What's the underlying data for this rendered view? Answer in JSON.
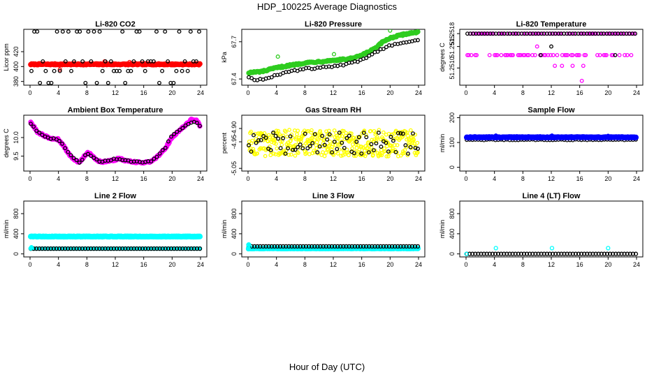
{
  "figure": {
    "title": "HDP_100225  Average Diagnostics",
    "xlabel": "Hour of Day (UTC)",
    "colors": {
      "frame": "#000000",
      "red": "#ff0000",
      "green": "#2ecc1f",
      "magenta": "#ff00ff",
      "yellow": "#ffff00",
      "blue": "#0000ff",
      "cyan": "#00ffff",
      "black": "#000000"
    }
  },
  "chart_data": [
    {
      "id": "co2",
      "type": "scatter",
      "title": "Li-820 CO2",
      "ylabel": "Licor ppm",
      "xlim": [
        0,
        24
      ],
      "ylim": [
        375,
        450
      ],
      "xticks": [
        "0",
        "4",
        "8",
        "12",
        "16",
        "20",
        "24"
      ],
      "yticks": [
        {
          "v": 380,
          "label": "380"
        },
        {
          "v": 400,
          "label": "400"
        },
        {
          "v": 420,
          "label": "420"
        }
      ],
      "series": [
        {
          "name": "average",
          "color": "#ff0000",
          "fill": true,
          "size": 3.2,
          "kind": "flat",
          "value": 403,
          "jitter": 0.6,
          "n": 190
        },
        {
          "name": "average-outliers",
          "color": "#ff0000",
          "fill": false,
          "size": 2.4,
          "kind": "points",
          "points": [
            [
              10.5,
              407
            ],
            [
              14.0,
              406
            ],
            [
              4.2,
              396
            ]
          ]
        },
        {
          "name": "samples",
          "color": "#000000",
          "fill": false,
          "size": 2.3,
          "kind": "levels",
          "levels": [
            378,
            394,
            407,
            447
          ],
          "n": 60
        }
      ]
    },
    {
      "id": "pressure",
      "type": "scatter",
      "title": "Li-820 Pressure",
      "ylabel": "kPa",
      "xlim": [
        0,
        24
      ],
      "ylim": [
        67.35,
        67.8
      ],
      "xticks": [
        "0",
        "4",
        "8",
        "12",
        "16",
        "20",
        "24"
      ],
      "yticks": [
        {
          "v": 67.4,
          "label": "67.4"
        },
        {
          "v": 67.7,
          "label": "67.7"
        }
      ],
      "series": [
        {
          "name": "average",
          "color": "#2ecc1f",
          "fill": true,
          "size": 3.0,
          "kind": "curve",
          "curve": [
            [
              0,
              67.45
            ],
            [
              2,
              67.46
            ],
            [
              4,
              67.49
            ],
            [
              6,
              67.51
            ],
            [
              8,
              67.53
            ],
            [
              10,
              67.54
            ],
            [
              12,
              67.55
            ],
            [
              14,
              67.56
            ],
            [
              15,
              67.57
            ],
            [
              16,
              67.59
            ],
            [
              17,
              67.62
            ],
            [
              18,
              67.65
            ],
            [
              19,
              67.7
            ],
            [
              20,
              67.73
            ],
            [
              22,
              67.76
            ],
            [
              24,
              67.78
            ]
          ],
          "jitter": 0.006,
          "n": 190
        },
        {
          "name": "samples",
          "color": "#000000",
          "fill": false,
          "size": 2.3,
          "kind": "curve",
          "curve": [
            [
              0,
              67.42
            ],
            [
              1,
              67.39
            ],
            [
              2,
              67.4
            ],
            [
              4,
              67.43
            ],
            [
              6,
              67.46
            ],
            [
              8,
              67.48
            ],
            [
              10,
              67.49
            ],
            [
              12,
              67.5
            ],
            [
              14,
              67.52
            ],
            [
              16,
              67.55
            ],
            [
              18,
              67.62
            ],
            [
              20,
              67.67
            ],
            [
              22,
              67.7
            ],
            [
              24,
              67.72
            ]
          ],
          "jitter": 0.008,
          "n": 60
        },
        {
          "name": "average-outliers",
          "color": "#2ecc1f",
          "fill": false,
          "size": 2.4,
          "kind": "points",
          "points": [
            [
              4.2,
              67.58
            ],
            [
              12.1,
              67.6
            ],
            [
              20.0,
              67.79
            ]
          ]
        }
      ]
    },
    {
      "id": "temperature",
      "type": "scatter",
      "title": "Li-820 Temperature",
      "ylabel": "degrees C",
      "xlim": [
        0,
        24
      ],
      "ylim": [
        51.2506,
        51.2519
      ],
      "xticks": [
        "0",
        "4",
        "8",
        "12",
        "16",
        "20",
        "24"
      ],
      "yticks": [
        {
          "v": 51.251,
          "label": "51.2510"
        },
        {
          "v": 51.2515,
          "label": "51.2515"
        },
        {
          "v": 51.2518,
          "label": "51.2518"
        }
      ],
      "series": [
        {
          "name": "average",
          "color": "#ff00ff",
          "fill": false,
          "size": 2.3,
          "kind": "levels",
          "levels": [
            51.2513,
            51.2518
          ],
          "n": 130
        },
        {
          "name": "average-low",
          "color": "#ff00ff",
          "fill": false,
          "size": 2.3,
          "kind": "points",
          "points": [
            [
              12.5,
              51.25105
            ],
            [
              13.5,
              51.25105
            ],
            [
              15,
              51.25105
            ],
            [
              16.5,
              51.25105
            ],
            [
              10,
              51.2515
            ],
            [
              16.3,
              51.2507
            ]
          ]
        },
        {
          "name": "samples",
          "color": "#000000",
          "fill": false,
          "size": 2.3,
          "kind": "levels",
          "levels": [
            51.2518
          ],
          "n": 60
        },
        {
          "name": "samples-mid",
          "color": "#000000",
          "fill": false,
          "size": 2.3,
          "kind": "points",
          "points": [
            [
              10.5,
              51.2513
            ],
            [
              12,
              51.2515
            ],
            [
              21,
              51.2513
            ]
          ]
        }
      ]
    },
    {
      "id": "ambient",
      "type": "scatter",
      "title": "Ambient Box Temperature",
      "ylabel": "degrees C",
      "xlim": [
        0,
        24
      ],
      "ylim": [
        9.1,
        10.6
      ],
      "xticks": [
        "0",
        "4",
        "8",
        "12",
        "16",
        "20",
        "24"
      ],
      "yticks": [
        {
          "v": 9.5,
          "label": "9.5"
        },
        {
          "v": 10.0,
          "label": "10.0"
        }
      ],
      "series": [
        {
          "name": "average",
          "color": "#ff00ff",
          "fill": true,
          "size": 3.0,
          "kind": "curve",
          "curve": [
            [
              0,
              10.45
            ],
            [
              0.5,
              10.3
            ],
            [
              1,
              10.15
            ],
            [
              2,
              10.05
            ],
            [
              3,
              9.97
            ],
            [
              4,
              9.95
            ],
            [
              4.8,
              9.75
            ],
            [
              5.5,
              9.55
            ],
            [
              6.2,
              9.4
            ],
            [
              7,
              9.33
            ],
            [
              7.6,
              9.5
            ],
            [
              8.2,
              9.6
            ],
            [
              8.8,
              9.5
            ],
            [
              9.5,
              9.38
            ],
            [
              10.2,
              9.33
            ],
            [
              11,
              9.38
            ],
            [
              12,
              9.4
            ],
            [
              12.6,
              9.45
            ],
            [
              13.2,
              9.38
            ],
            [
              14,
              9.36
            ],
            [
              15,
              9.34
            ],
            [
              16,
              9.33
            ],
            [
              17,
              9.35
            ],
            [
              18,
              9.5
            ],
            [
              19,
              9.7
            ],
            [
              20,
              10.0
            ],
            [
              21,
              10.18
            ],
            [
              22,
              10.35
            ],
            [
              22.8,
              10.5
            ],
            [
              23.5,
              10.45
            ],
            [
              24,
              10.28
            ]
          ],
          "jitter": 0.02,
          "n": 200
        },
        {
          "name": "samples",
          "color": "#000000",
          "fill": false,
          "size": 2.3,
          "kind": "curve",
          "curve": [
            [
              0,
              10.4
            ],
            [
              1,
              10.15
            ],
            [
              2,
              10.05
            ],
            [
              3,
              9.97
            ],
            [
              4,
              9.95
            ],
            [
              5,
              9.72
            ],
            [
              6,
              9.45
            ],
            [
              7,
              9.33
            ],
            [
              8,
              9.58
            ],
            [
              9,
              9.45
            ],
            [
              10,
              9.33
            ],
            [
              11,
              9.38
            ],
            [
              12,
              9.42
            ],
            [
              13,
              9.4
            ],
            [
              14,
              9.36
            ],
            [
              15,
              9.34
            ],
            [
              16,
              9.33
            ],
            [
              17,
              9.35
            ],
            [
              18,
              9.5
            ],
            [
              19,
              9.72
            ],
            [
              20,
              10.08
            ],
            [
              21,
              10.2
            ],
            [
              22,
              10.35
            ],
            [
              23,
              10.45
            ],
            [
              24,
              10.3
            ]
          ],
          "jitter": 0.02,
          "n": 60
        }
      ]
    },
    {
      "id": "rh",
      "type": "scatter",
      "title": "Gas Stream RH",
      "ylabel": "percent",
      "xlim": [
        0,
        24
      ],
      "ylim": [
        -5.06,
        -4.85
      ],
      "xticks": [
        "0",
        "4",
        "8",
        "12",
        "16",
        "20",
        "24"
      ],
      "yticks": [
        {
          "v": -5.05,
          "label": "-5.05"
        },
        {
          "v": -4.95,
          "label": "-4.95"
        },
        {
          "v": -4.9,
          "label": "-4.90"
        }
      ],
      "series": [
        {
          "name": "average",
          "color": "#ffff00",
          "fill": false,
          "size": 2.2,
          "kind": "flat",
          "value": -4.955,
          "jitter": 0.05,
          "n": 380
        },
        {
          "name": "samples",
          "color": "#000000",
          "fill": false,
          "size": 2.3,
          "kind": "flat",
          "value": -4.955,
          "jitter": 0.04,
          "n": 70
        }
      ]
    },
    {
      "id": "sample",
      "type": "scatter",
      "title": "Sample Flow",
      "ylabel": "ml/min",
      "xlim": [
        0,
        24
      ],
      "ylim": [
        -15,
        210
      ],
      "xticks": [
        "0",
        "4",
        "8",
        "12",
        "16",
        "20",
        "24"
      ],
      "yticks": [
        {
          "v": 0,
          "label": "0"
        },
        {
          "v": 100,
          "label": "100"
        },
        {
          "v": 200,
          "label": "200"
        }
      ],
      "series": [
        {
          "name": "samples",
          "color": "#000000",
          "fill": false,
          "size": 2.3,
          "kind": "flat",
          "value": 111,
          "jitter": 1.5,
          "n": 60
        },
        {
          "name": "average",
          "color": "#0000ff",
          "fill": true,
          "size": 3.4,
          "kind": "flat",
          "value": 121,
          "jitter": 1.2,
          "n": 190
        },
        {
          "name": "average-outliers",
          "color": "#0000ff",
          "fill": false,
          "size": 2.4,
          "kind": "points",
          "points": [
            [
              4.2,
              128
            ],
            [
              12.1,
              128
            ],
            [
              20.0,
              127
            ]
          ]
        }
      ]
    },
    {
      "id": "line2",
      "type": "scatter",
      "title": "Line 2 Flow",
      "ylabel": "ml/min",
      "xlim": [
        0,
        24
      ],
      "ylim": [
        -60,
        1050
      ],
      "xticks": [
        "0",
        "4",
        "8",
        "12",
        "16",
        "20",
        "24"
      ],
      "yticks": [
        {
          "v": 0,
          "label": "0"
        },
        {
          "v": 400,
          "label": "400"
        },
        {
          "v": 800,
          "label": "800"
        }
      ],
      "series": [
        {
          "name": "average",
          "color": "#00ffff",
          "fill": true,
          "size": 3.4,
          "kind": "flat",
          "value": 345,
          "jitter": 4,
          "n": 190
        },
        {
          "name": "samples-fill",
          "color": "#00ffff",
          "fill": true,
          "size": 2.6,
          "kind": "flat",
          "value": 105,
          "jitter": 0,
          "n": 60
        },
        {
          "name": "samples",
          "color": "#000000",
          "fill": false,
          "size": 2.5,
          "kind": "flat",
          "value": 105,
          "jitter": 0,
          "n": 60
        },
        {
          "name": "start",
          "color": "#00ffff",
          "fill": true,
          "size": 2.6,
          "kind": "points",
          "points": [
            [
              0.1,
              110
            ],
            [
              0.2,
              130
            ]
          ]
        }
      ]
    },
    {
      "id": "line3",
      "type": "scatter",
      "title": "Line 3 Flow",
      "ylabel": "ml/min",
      "xlim": [
        0,
        24
      ],
      "ylim": [
        -60,
        1050
      ],
      "xticks": [
        "0",
        "4",
        "8",
        "12",
        "16",
        "20",
        "24"
      ],
      "yticks": [
        {
          "v": 0,
          "label": "0"
        },
        {
          "v": 400,
          "label": "400"
        },
        {
          "v": 800,
          "label": "800"
        }
      ],
      "series": [
        {
          "name": "average",
          "color": "#00ffff",
          "fill": true,
          "size": 3.4,
          "kind": "flat",
          "value": 110,
          "jitter": 3,
          "n": 190
        },
        {
          "name": "samples",
          "color": "#000000",
          "fill": false,
          "size": 2.5,
          "kind": "flat",
          "value": 150,
          "jitter": 0,
          "n": 60
        },
        {
          "name": "start",
          "color": "#00ffff",
          "fill": true,
          "size": 3.0,
          "kind": "points",
          "points": [
            [
              0.05,
              100
            ],
            [
              0.1,
              180
            ]
          ]
        }
      ]
    },
    {
      "id": "line4",
      "type": "scatter",
      "title": "Line 4 (LT) Flow",
      "ylabel": "ml/min",
      "xlim": [
        0,
        24
      ],
      "ylim": [
        -60,
        1050
      ],
      "xticks": [
        "0",
        "4",
        "8",
        "12",
        "16",
        "20",
        "24"
      ],
      "yticks": [
        {
          "v": 0,
          "label": "0"
        },
        {
          "v": 400,
          "label": "400"
        },
        {
          "v": 800,
          "label": "800"
        }
      ],
      "series": [
        {
          "name": "samples",
          "color": "#000000",
          "fill": false,
          "size": 2.5,
          "kind": "flat",
          "value": 0,
          "jitter": 0,
          "n": 60
        },
        {
          "name": "average",
          "color": "#00ffff",
          "fill": false,
          "size": 2.5,
          "kind": "points",
          "points": [
            [
              4.2,
              115
            ],
            [
              12.1,
              115
            ],
            [
              20.0,
              115
            ],
            [
              0.05,
              0
            ]
          ]
        }
      ]
    }
  ]
}
